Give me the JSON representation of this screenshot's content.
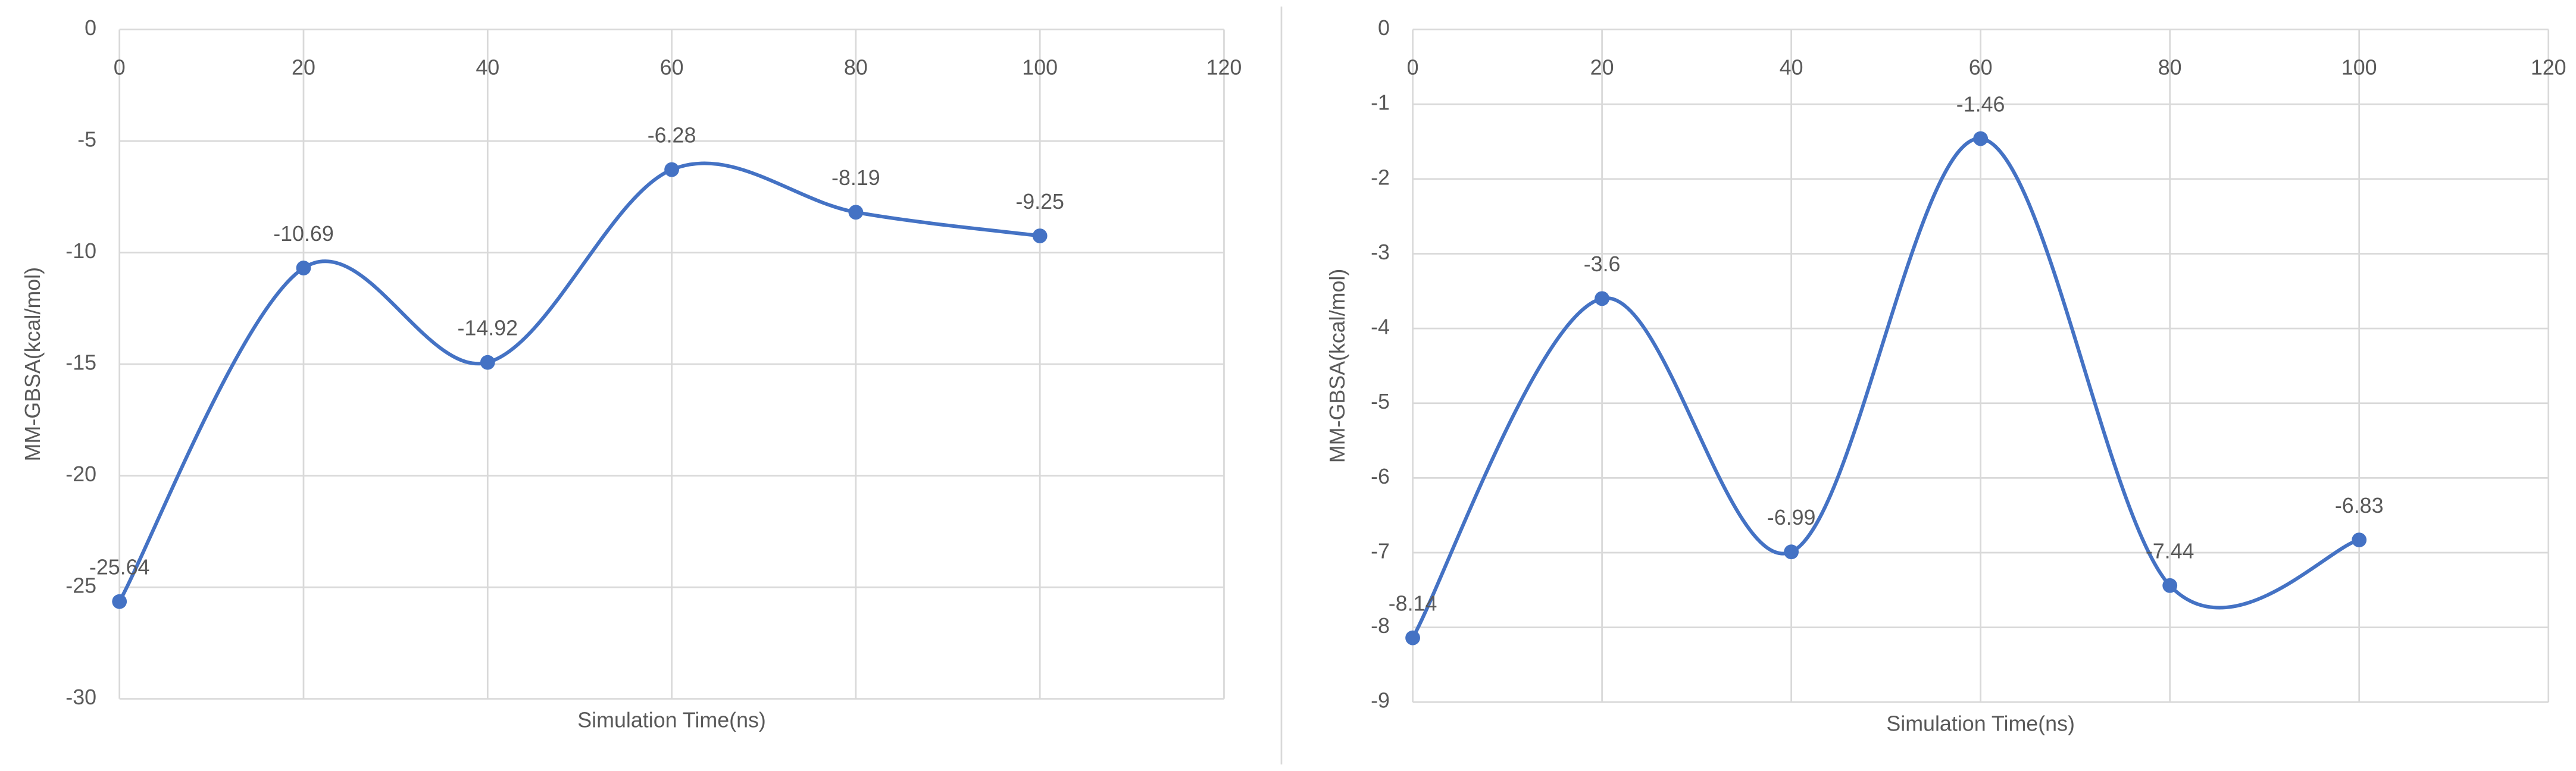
{
  "chart_data": [
    {
      "type": "line",
      "x": [
        0,
        20,
        40,
        60,
        80,
        100
      ],
      "values": [
        -25.64,
        -10.69,
        -14.92,
        -6.28,
        -8.19,
        -9.25
      ],
      "color": "#4472c4",
      "x_label": "Simulation Time(ns)",
      "y_label": "MM-GBSA(kcal/mol)",
      "xlim": [
        0,
        120
      ],
      "xticks": [
        0,
        20,
        40,
        60,
        80,
        100,
        120
      ],
      "ylim": [
        -30,
        0
      ],
      "yticks": [
        0,
        -5,
        -10,
        -15,
        -20,
        -25,
        -30
      ],
      "grid": true,
      "smooth": true
    },
    {
      "type": "line",
      "x": [
        0,
        20,
        40,
        60,
        80,
        100
      ],
      "values": [
        -8.14,
        -3.6,
        -6.99,
        -1.46,
        -7.44,
        -6.83
      ],
      "color": "#4472c4",
      "x_label": "Simulation Time(ns)",
      "y_label": "MM-GBSA(kcal/mol)",
      "xlim": [
        0,
        120
      ],
      "xticks": [
        0,
        20,
        40,
        60,
        80,
        100,
        120
      ],
      "ylim": [
        -9,
        0
      ],
      "yticks": [
        0,
        -1,
        -2,
        -3,
        -4,
        -5,
        -6,
        -7,
        -8,
        -9
      ],
      "grid": true,
      "smooth": true
    }
  ]
}
